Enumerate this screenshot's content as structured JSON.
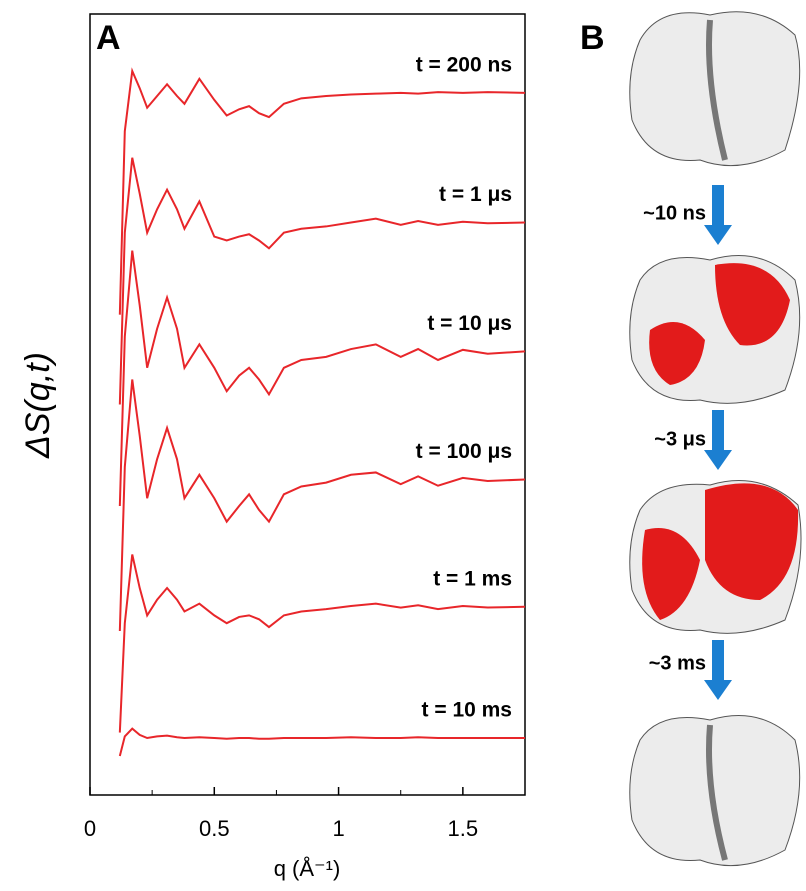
{
  "chart_data": {
    "type": "line",
    "panel_label": "A",
    "ylabel": "ΔS(q,t)",
    "xlabel": "q (Å⁻¹)",
    "x": [
      0.12,
      0.14,
      0.17,
      0.2,
      0.23,
      0.27,
      0.31,
      0.35,
      0.38,
      0.44,
      0.5,
      0.55,
      0.6,
      0.64,
      0.68,
      0.72,
      0.78,
      0.85,
      0.95,
      1.05,
      1.15,
      1.25,
      1.32,
      1.4,
      1.5,
      1.6,
      1.75
    ],
    "xlim": [
      0,
      1.75
    ],
    "ylim": [
      0,
      100
    ],
    "xticks": [
      0,
      0.5,
      1,
      1.5
    ],
    "xminor_ticks": [
      0.25,
      0.75,
      1.25
    ],
    "series": [
      {
        "name": "t = 200 ns",
        "color": "#e8262a",
        "values": [
          61.5,
          85,
          92.7,
          90.5,
          88,
          89.5,
          91,
          89.5,
          88.5,
          91.7,
          89,
          87,
          87.8,
          88.2,
          87.3,
          86.8,
          88.5,
          89.2,
          89.5,
          89.7,
          89.8,
          89.9,
          89.8,
          90,
          89.9,
          90,
          89.9
        ]
      },
      {
        "name": "t = 1 μs",
        "color": "#e8262a",
        "values": [
          50,
          72,
          81.6,
          77,
          72,
          75,
          77.5,
          75,
          72.5,
          76,
          71.5,
          71,
          71.5,
          71.8,
          71,
          70,
          72,
          72.5,
          72.8,
          73.3,
          73.8,
          73,
          73.5,
          73,
          73.4,
          73.2,
          73.3
        ]
      },
      {
        "name": "t = 10 μs",
        "color": "#e8262a",
        "values": [
          37,
          58.7,
          69.7,
          62.7,
          54.7,
          59.7,
          63.7,
          59.7,
          54.7,
          57.7,
          54.7,
          51.7,
          53.7,
          54.7,
          53.2,
          51.3,
          54.7,
          55.7,
          56.1,
          57.1,
          57.7,
          56.1,
          57.1,
          55.7,
          57,
          56.5,
          56.8
        ]
      },
      {
        "name": "t = 100 μs",
        "color": "#e8262a",
        "values": [
          21,
          42,
          53.2,
          46,
          38,
          43,
          47,
          43,
          38,
          41,
          38,
          35,
          37,
          38.5,
          36.5,
          35,
          38.5,
          39.5,
          40,
          41,
          41.3,
          39.8,
          40.8,
          39.6,
          40.6,
          40.2,
          40.4
        ]
      },
      {
        "name": "t = 1 ms",
        "color": "#e8262a",
        "values": [
          8,
          22,
          30.8,
          26.5,
          23,
          25,
          26.5,
          25,
          23.5,
          24.5,
          23,
          22,
          22.8,
          23,
          22.5,
          21.5,
          23,
          23.5,
          23.8,
          24.2,
          24.5,
          24,
          24.3,
          23.8,
          24.2,
          24,
          24.1
        ]
      },
      {
        "name": "t = 10 ms",
        "color": "#e8262a",
        "values": [
          5,
          7.5,
          8.5,
          7.7,
          7.3,
          7.5,
          7.6,
          7.4,
          7.3,
          7.4,
          7.3,
          7.2,
          7.3,
          7.3,
          7.2,
          7.2,
          7.3,
          7.3,
          7.3,
          7.4,
          7.3,
          7.3,
          7.4,
          7.3,
          7.3,
          7.3,
          7.3
        ]
      }
    ]
  },
  "panel_b": {
    "label": "B",
    "steps": [
      "~10 ns",
      "~3 μs",
      "~3 ms"
    ]
  }
}
